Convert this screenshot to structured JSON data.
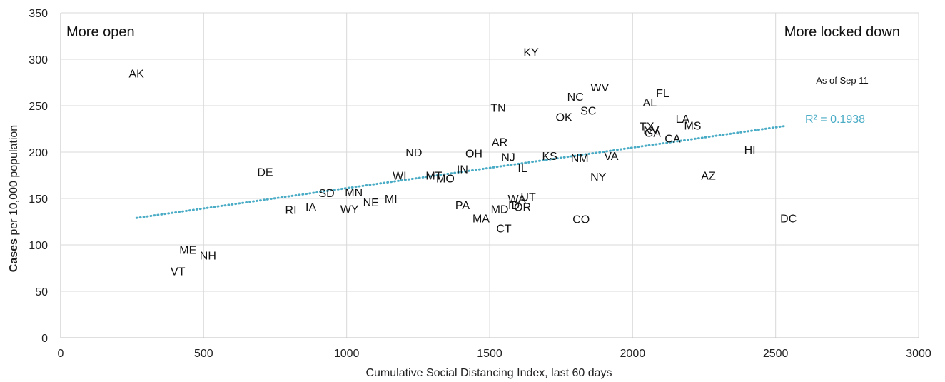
{
  "chart_data": {
    "type": "scatter",
    "xlabel": "Cumulative Social Distancing Index, last 60 days",
    "ylabel_bold": "Cases",
    "ylabel_rest": " per 10,000 population",
    "xlim": [
      0,
      3000
    ],
    "ylim": [
      0,
      350
    ],
    "xticks": [
      0,
      500,
      1000,
      1500,
      2000,
      2500,
      3000
    ],
    "yticks": [
      0,
      50,
      100,
      150,
      200,
      250,
      300,
      350
    ],
    "grid": true,
    "annotations": {
      "left": "More open",
      "right": "More locked down",
      "date": "As of Sep 11",
      "r_squared": "R² = 0.1938"
    },
    "trendline": {
      "x": [
        265,
        2530
      ],
      "y": [
        129,
        228
      ],
      "color": "#4bacc6"
    },
    "points": [
      {
        "label": "AK",
        "x": 265,
        "y": 285
      },
      {
        "label": "KY",
        "x": 1645,
        "y": 308
      },
      {
        "label": "WV",
        "x": 1885,
        "y": 270
      },
      {
        "label": "FL",
        "x": 2105,
        "y": 264
      },
      {
        "label": "NC",
        "x": 1800,
        "y": 260
      },
      {
        "label": "AL",
        "x": 2060,
        "y": 254
      },
      {
        "label": "TN",
        "x": 1530,
        "y": 248
      },
      {
        "label": "SC",
        "x": 1845,
        "y": 245
      },
      {
        "label": "OK",
        "x": 1760,
        "y": 238
      },
      {
        "label": "LA",
        "x": 2175,
        "y": 236
      },
      {
        "label": "MS",
        "x": 2210,
        "y": 229
      },
      {
        "label": "TX",
        "x": 2050,
        "y": 228
      },
      {
        "label": "NV",
        "x": 2065,
        "y": 224
      },
      {
        "label": "GA",
        "x": 2070,
        "y": 221
      },
      {
        "label": "CA",
        "x": 2140,
        "y": 215
      },
      {
        "label": "AR",
        "x": 1535,
        "y": 211
      },
      {
        "label": "HI",
        "x": 2410,
        "y": 203
      },
      {
        "label": "ND",
        "x": 1235,
        "y": 200
      },
      {
        "label": "OH",
        "x": 1445,
        "y": 199
      },
      {
        "label": "KS",
        "x": 1710,
        "y": 196
      },
      {
        "label": "NJ",
        "x": 1565,
        "y": 195
      },
      {
        "label": "NM",
        "x": 1815,
        "y": 194
      },
      {
        "label": "VA",
        "x": 1925,
        "y": 196
      },
      {
        "label": "IL",
        "x": 1615,
        "y": 183
      },
      {
        "label": "IN",
        "x": 1405,
        "y": 182
      },
      {
        "label": "DE",
        "x": 715,
        "y": 179
      },
      {
        "label": "WI",
        "x": 1185,
        "y": 175
      },
      {
        "label": "MT",
        "x": 1305,
        "y": 175
      },
      {
        "label": "MO",
        "x": 1345,
        "y": 172
      },
      {
        "label": "NY",
        "x": 1880,
        "y": 174
      },
      {
        "label": "AZ",
        "x": 2265,
        "y": 175
      },
      {
        "label": "SD",
        "x": 930,
        "y": 156
      },
      {
        "label": "MN",
        "x": 1025,
        "y": 157
      },
      {
        "label": "MI",
        "x": 1155,
        "y": 150
      },
      {
        "label": "NE",
        "x": 1085,
        "y": 146
      },
      {
        "label": "UT",
        "x": 1635,
        "y": 152
      },
      {
        "label": "WA",
        "x": 1595,
        "y": 150
      },
      {
        "label": "ID",
        "x": 1585,
        "y": 143
      },
      {
        "label": "OR",
        "x": 1615,
        "y": 141
      },
      {
        "label": "PA",
        "x": 1405,
        "y": 143
      },
      {
        "label": "MD",
        "x": 1535,
        "y": 139
      },
      {
        "label": "IA",
        "x": 875,
        "y": 141
      },
      {
        "label": "WY",
        "x": 1010,
        "y": 139
      },
      {
        "label": "RI",
        "x": 805,
        "y": 138
      },
      {
        "label": "MA",
        "x": 1470,
        "y": 129
      },
      {
        "label": "CT",
        "x": 1550,
        "y": 118
      },
      {
        "label": "CO",
        "x": 1820,
        "y": 128
      },
      {
        "label": "DC",
        "x": 2545,
        "y": 129
      },
      {
        "label": "ME",
        "x": 445,
        "y": 95
      },
      {
        "label": "NH",
        "x": 515,
        "y": 89
      },
      {
        "label": "VT",
        "x": 410,
        "y": 72
      }
    ]
  }
}
